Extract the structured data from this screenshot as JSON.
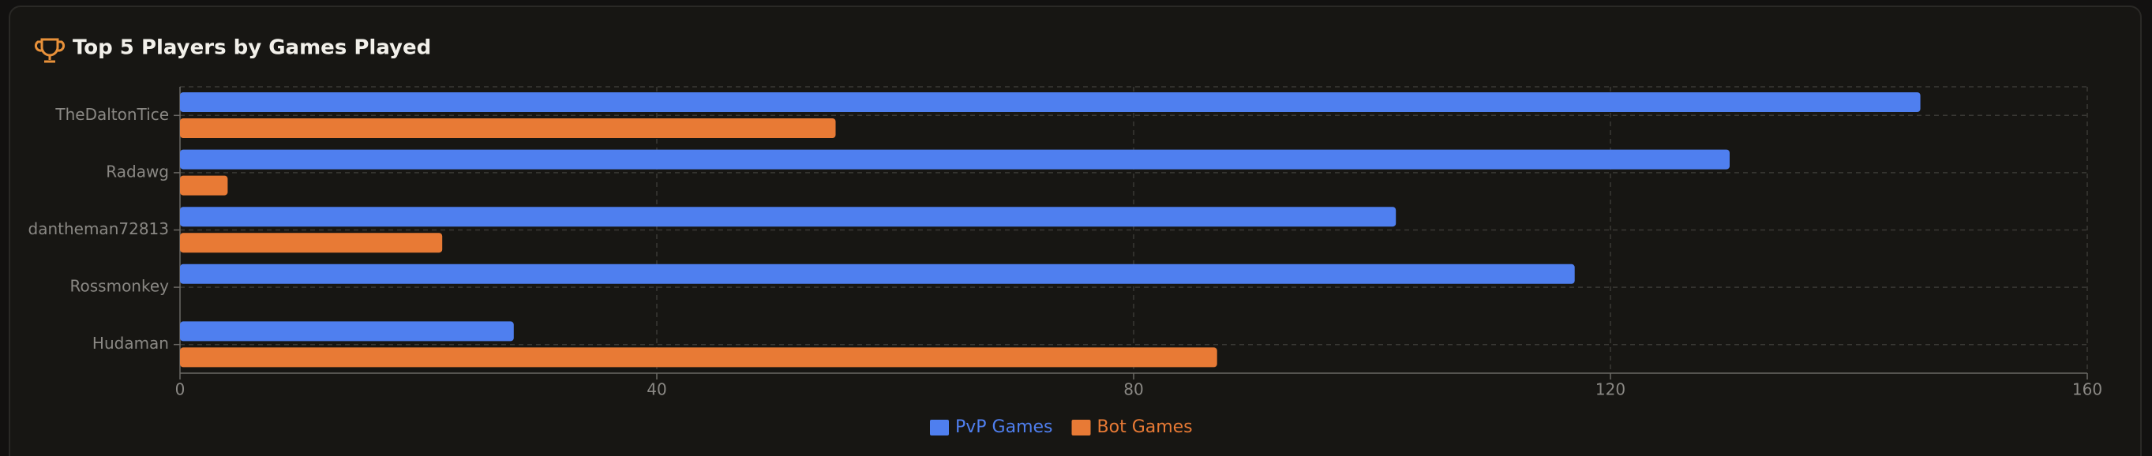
{
  "chart_data": {
    "type": "hbar",
    "title": "Top 5 Players by Games Played",
    "categories": [
      "TheDaltonTice",
      "Radawg",
      "dantheman72813",
      "Rossmonkey",
      "Hudaman"
    ],
    "series": [
      {
        "name": "PvP Games",
        "color": "#4f7fef",
        "values": [
          146,
          130,
          102,
          117,
          28
        ]
      },
      {
        "name": "Bot Games",
        "color": "#e87a35",
        "values": [
          55,
          4,
          22,
          0,
          87
        ]
      }
    ],
    "xlim": [
      0,
      160
    ],
    "xticks": [
      0,
      40,
      80,
      120,
      160
    ],
    "grid": true,
    "legend": "bottom"
  }
}
